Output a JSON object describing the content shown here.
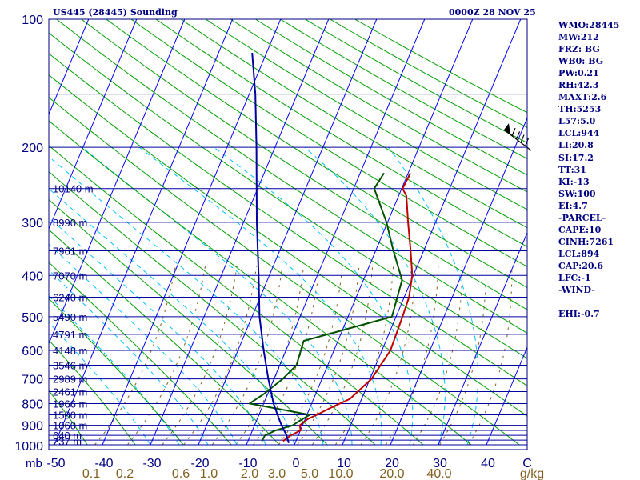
{
  "header": {
    "station": "US445 (28445) Sounding",
    "time": "0000Z 28 NOV 25"
  },
  "indices": [
    "WMO:28445",
    "MW:212",
    "FRZ: BG",
    "WB0: BG",
    "PW:0.21",
    "RH:42.3",
    "MAXT:2.6",
    "TH:5253",
    "L57:5.0",
    "LCL:944",
    "LI:20.8",
    "SI:17.2",
    "TT:31",
    "KI:-13",
    "SW:100",
    "EI:4.7",
    "-PARCEL-",
    "CAPE:10",
    "CINH:7261",
    "LCL:894",
    "CAP:20.6",
    "LFC:-1",
    "-WIND-",
    "",
    "EHI:-0.7"
  ],
  "colors": {
    "background": "#ffffff",
    "frame": "#000080",
    "isobar": "#0000a0",
    "isotherm": "#0000ff",
    "dry_adiabat": "#00a000",
    "moist_adiabat": "#00c0ff",
    "mixing_ratio": "#806020",
    "temperature": "#c00000",
    "dewpoint": "#005000",
    "parcel": "#0000a0",
    "wind": "#000000",
    "label": "#000080",
    "mixing_label": "#806020"
  },
  "chart_data": {
    "type": "line",
    "title": "US445 (28445) Sounding",
    "subtitle": "0000Z 28 NOV 25",
    "xlabel": "°C",
    "ylabel": "mb",
    "x_units": "C",
    "y_units": "mb",
    "x_ticks": [
      "-50",
      "-40",
      "-30",
      "-20",
      "-10",
      "0",
      "10",
      "20",
      "30",
      "40"
    ],
    "x_tick_values": [
      -50,
      -40,
      -30,
      -20,
      -10,
      0,
      10,
      20,
      30,
      40
    ],
    "y_tick_labels": [
      "100",
      "200",
      "300",
      "400",
      "500",
      "600",
      "700",
      "800",
      "900",
      "1000"
    ],
    "y_tick_values": [
      100,
      200,
      300,
      400,
      500,
      600,
      700,
      800,
      900,
      1000
    ],
    "ylim": [
      100,
      1000
    ],
    "xlim": [
      -50,
      50
    ],
    "skew_c_per_mb": 0.04125,
    "isobars": [
      100,
      150,
      200,
      250,
      300,
      350,
      400,
      450,
      500,
      550,
      600,
      650,
      700,
      750,
      800,
      850,
      900,
      925,
      950,
      975,
      1000
    ],
    "mixing_ratio_labels": [
      "0.1",
      "0.2",
      "0.6",
      "1.0",
      "2.0",
      "3.0",
      "5.0",
      "10.0",
      "20.0",
      "40.0",
      "g/kg"
    ],
    "mixing_ratio_values": [
      0.1,
      0.2,
      0.6,
      1.0,
      2.0,
      3.0,
      5.0,
      10.0,
      20.0,
      40.0
    ],
    "heights": [
      {
        "p": 250,
        "label": "10140 m"
      },
      {
        "p": 300,
        "label": "8990 m"
      },
      {
        "p": 350,
        "label": "7961 m"
      },
      {
        "p": 400,
        "label": "7070 m"
      },
      {
        "p": 450,
        "label": "6240 m"
      },
      {
        "p": 500,
        "label": "5490 m"
      },
      {
        "p": 550,
        "label": "4791 m"
      },
      {
        "p": 600,
        "label": "4148 m"
      },
      {
        "p": 650,
        "label": "3546 m"
      },
      {
        "p": 700,
        "label": "2989 m"
      },
      {
        "p": 750,
        "label": "2461 m"
      },
      {
        "p": 800,
        "label": "1966 m"
      },
      {
        "p": 850,
        "label": "1500 m"
      },
      {
        "p": 900,
        "label": "1060 m"
      },
      {
        "p": 950,
        "label": "640 m"
      },
      {
        "p": 980,
        "label": "237 m"
      }
    ],
    "series": [
      {
        "name": "Temperature",
        "points": [
          {
            "p": 980,
            "t": -3.2
          },
          {
            "p": 950,
            "t": -2.8
          },
          {
            "p": 925,
            "t": -1.8
          },
          {
            "p": 900,
            "t": -3.0
          },
          {
            "p": 870,
            "t": -2.6
          },
          {
            "p": 850,
            "t": -1.5
          },
          {
            "p": 820,
            "t": 0.0
          },
          {
            "p": 780,
            "t": 2.5
          },
          {
            "p": 700,
            "t": 3.7
          },
          {
            "p": 600,
            "t": 3.5
          },
          {
            "p": 500,
            "t": 1.9
          },
          {
            "p": 450,
            "t": 1.2
          },
          {
            "p": 400,
            "t": -0.2
          },
          {
            "p": 350,
            "t": -2.6
          },
          {
            "p": 300,
            "t": -5.2
          },
          {
            "p": 260,
            "t": -7.2
          },
          {
            "p": 250,
            "t": -8.4
          },
          {
            "p": 230,
            "t": -7.6
          }
        ]
      },
      {
        "name": "Dewpoint",
        "points": [
          {
            "p": 980,
            "t": -7.6
          },
          {
            "p": 950,
            "t": -8.2
          },
          {
            "p": 925,
            "t": -7.0
          },
          {
            "p": 900,
            "t": -4.5
          },
          {
            "p": 880,
            "t": -4.0
          },
          {
            "p": 850,
            "t": -3.0
          },
          {
            "p": 800,
            "t": -17.6
          },
          {
            "p": 760,
            "t": -16.3
          },
          {
            "p": 700,
            "t": -14.8
          },
          {
            "p": 650,
            "t": -14.0
          },
          {
            "p": 570,
            "t": -15.8
          },
          {
            "p": 500,
            "t": -0.3
          },
          {
            "p": 410,
            "t": -1.9
          },
          {
            "p": 350,
            "t": -6.2
          },
          {
            "p": 300,
            "t": -9.7
          },
          {
            "p": 250,
            "t": -14.3
          },
          {
            "p": 230,
            "t": -13.1
          }
        ]
      },
      {
        "name": "Parcel",
        "points": [
          {
            "p": 990,
            "t": -1.6
          },
          {
            "p": 950,
            "t": -3.7
          },
          {
            "p": 900,
            "t": -6.8
          },
          {
            "p": 850,
            "t": -9.7
          },
          {
            "p": 800,
            "t": -12.6
          },
          {
            "p": 700,
            "t": -17.8
          },
          {
            "p": 600,
            "t": -22.9
          },
          {
            "p": 500,
            "t": -27.9
          },
          {
            "p": 400,
            "t": -32.2
          },
          {
            "p": 300,
            "t": -36.7
          },
          {
            "p": 200,
            "t": -40.9
          },
          {
            "p": 150,
            "t": -43.2
          },
          {
            "p": 120,
            "t": -45.1
          }
        ]
      }
    ],
    "wind_barb": {
      "p": 200,
      "description": "wind barb at top right"
    }
  }
}
